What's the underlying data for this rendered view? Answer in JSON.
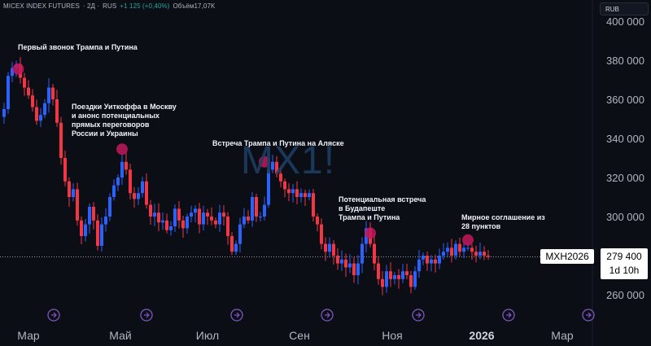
{
  "header": {
    "symbol": "MICEX INDEX FUTURES",
    "interval": "· 2Д ·",
    "exchange": "RUS",
    "change": "+1 125 (+0,40%)",
    "volume": "Объём17,07K"
  },
  "currency_button": "RUB",
  "watermark": "MX1!",
  "price_label": {
    "symbol": "MXH2026",
    "price": "279 400",
    "countdown": "1d 10h"
  },
  "annotations": [
    {
      "text": "Первый звонок Трампа и Путина",
      "t": 3.5,
      "price": 375500
    },
    {
      "text": "Поездки Уиткоффа в Москву\nи анонс потенциальных\nпрямых переговоров\nРоссии и Украины",
      "t": 29,
      "price": 334500
    },
    {
      "text": "Встреча Трампа и Путина на Аляске",
      "t": 64,
      "price": 328000
    },
    {
      "text": "Потенциальная встреча\nв Будапеште\nТрампа и Путина",
      "t": 90,
      "price": 291500
    },
    {
      "text": "Мирное соглашение из\n28 пунктов",
      "t": 114,
      "price": 288000
    }
  ],
  "colors": {
    "up": "#2962ff",
    "down": "#f23645",
    "marker": "#c2185b",
    "background": "#0c0e15"
  },
  "chart_data": {
    "type": "candlestick",
    "title": "MICEX INDEX FUTURES · 2Д · RUS",
    "x_ticks": [
      "Мар",
      "Май",
      "Июл",
      "Сен",
      "Ноя",
      "2026",
      "Мар"
    ],
    "y_ticks": [
      260000,
      280000,
      300000,
      320000,
      340000,
      360000,
      380000,
      400000
    ],
    "ylim": [
      248000,
      405000
    ],
    "last_price": 279400,
    "close": [
      355000,
      372000,
      376000,
      378000,
      371000,
      366000,
      362000,
      356000,
      349000,
      352000,
      358000,
      366000,
      360000,
      348000,
      330000,
      318000,
      310000,
      314000,
      298000,
      290000,
      296000,
      305000,
      298000,
      285000,
      296000,
      300000,
      310000,
      316000,
      320000,
      328000,
      324000,
      312000,
      309000,
      312000,
      318000,
      306000,
      300000,
      302000,
      297000,
      298000,
      293000,
      295000,
      304000,
      298000,
      294000,
      300000,
      302000,
      304000,
      296000,
      302000,
      300000,
      298000,
      296000,
      302000,
      300000,
      290000,
      282000,
      286000,
      296000,
      300000,
      298000,
      310000,
      300000,
      300000,
      306000,
      324000,
      328000,
      322000,
      318000,
      314000,
      312000,
      314000,
      310000,
      312000,
      310000,
      312000,
      300000,
      296000,
      286000,
      282000,
      286000,
      280000,
      276000,
      278000,
      274000,
      276000,
      270000,
      276000,
      286000,
      294000,
      286000,
      276000,
      268000,
      264000,
      272000,
      268000,
      270000,
      268000,
      272000,
      270000,
      264000,
      272000,
      278000,
      280000,
      276000,
      278000,
      276000,
      280000,
      282000,
      284000,
      280000,
      286000,
      282000,
      284000,
      284000,
      282000,
      280000,
      282000,
      280000,
      279400
    ],
    "annotations": [
      "Первый звонок Трампа и Путина",
      "Поездки Уиткоффа в Москву и анонс потенциальных прямых переговоров России и Украины",
      "Встреча Трампа и Путина на Аляске",
      "Потенциальная встреча в Будапеште Трампа и Путина",
      "Мирное соглашение из 28 пунктов"
    ]
  }
}
